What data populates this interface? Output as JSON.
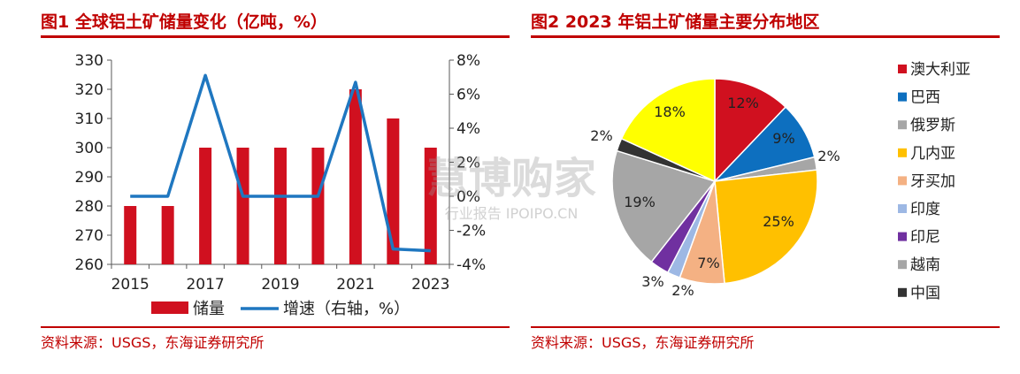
{
  "left_panel": {
    "title": "图1  全球铝土矿储量变化（亿吨，%）",
    "source": "资料来源：USGS，东海证券研究所"
  },
  "right_panel": {
    "title": "图2  2023 年铝土矿储量主要分布地区",
    "source": "资料来源：USGS，东海证券研究所"
  },
  "watermark": {
    "line1": "慧博购家",
    "line2": "行业报告 IPOIPO.CN"
  },
  "colors": {
    "brand_red": "#c00000",
    "bar_red": "#d0101f",
    "line_blue": "#1f77c0"
  },
  "chart_data": [
    {
      "type": "bar",
      "x": [
        2015,
        2016,
        2017,
        2018,
        2019,
        2020,
        2021,
        2022,
        2023
      ],
      "x_tick_labels": [
        "2015",
        "2017",
        "2019",
        "2021",
        "2023"
      ],
      "ylim": [
        260,
        330
      ],
      "y_ticks": [
        "330",
        "320",
        "310",
        "300",
        "290",
        "280",
        "270",
        "260"
      ],
      "y2lim": [
        -4,
        8
      ],
      "y2_ticks": [
        "8%",
        "6%",
        "4%",
        "2%",
        "0%",
        "-2%",
        "-4%"
      ],
      "series": [
        {
          "name": "储量",
          "type": "bar",
          "axis": "left",
          "color": "#d0101f",
          "values": [
            280,
            280,
            300,
            300,
            300,
            300,
            320,
            310,
            300
          ]
        },
        {
          "name": "增速（右轴，%）",
          "type": "line",
          "axis": "right",
          "color": "#1f77c0",
          "values": [
            0,
            0,
            7.1,
            0,
            0,
            0,
            6.7,
            -3.1,
            -3.2
          ]
        }
      ],
      "legend_position": "bottom",
      "grid": false
    },
    {
      "type": "pie",
      "slices": [
        {
          "name": "澳大利亚",
          "value": 12,
          "label": "12%",
          "color": "#d0101f"
        },
        {
          "name": "巴西",
          "value": 9,
          "label": "9%",
          "color": "#0d6fbf"
        },
        {
          "name": "俄罗斯",
          "value": 2,
          "label": "2%",
          "color": "#a6a6a6"
        },
        {
          "name": "几内亚",
          "value": 25,
          "label": "25%",
          "color": "#ffc000"
        },
        {
          "name": "牙买加",
          "value": 7,
          "label": "7%",
          "color": "#f4b183"
        },
        {
          "name": "印度",
          "value": 2,
          "label": "2%",
          "color": "#9db8e4"
        },
        {
          "name": "印尼",
          "value": 3,
          "label": "3%",
          "color": "#7030a0"
        },
        {
          "name": "越南",
          "value": 19,
          "label": "19%",
          "color": "#a6a6a6"
        },
        {
          "name": "中国",
          "value": 2,
          "label": "2%",
          "color": "#333333"
        },
        {
          "name": "",
          "value": 18,
          "label": "18%",
          "color": "#ffff00"
        }
      ],
      "start_angle_deg": 0,
      "direction": "clockwise",
      "legend_position": "right"
    }
  ]
}
